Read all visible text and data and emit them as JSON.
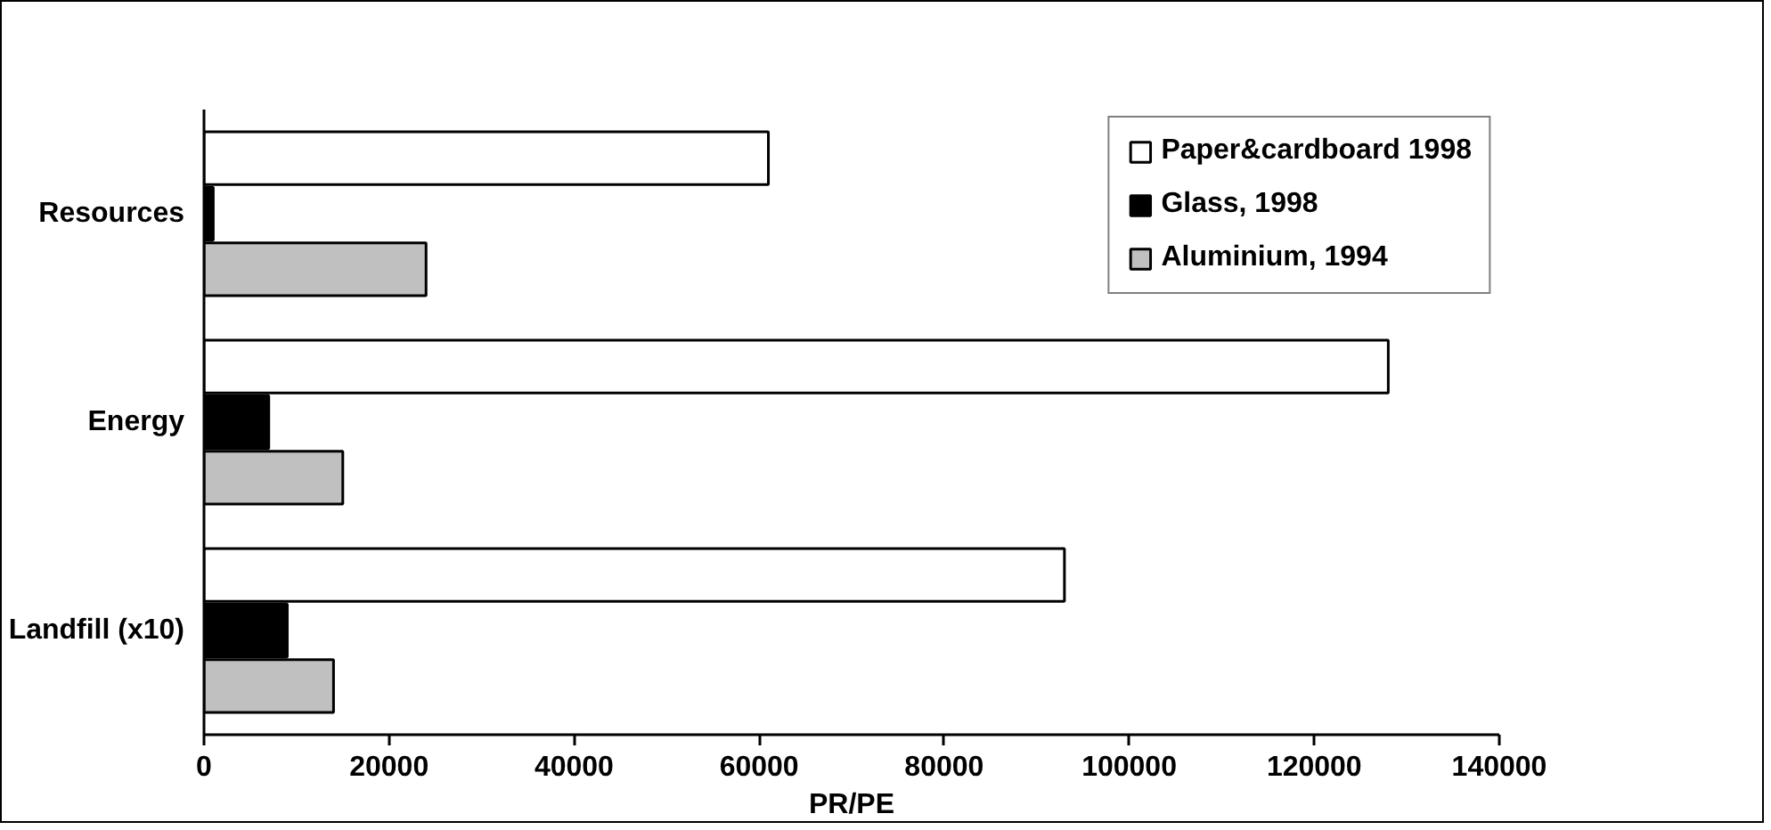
{
  "chart_data": {
    "type": "bar",
    "orientation": "horizontal",
    "xlabel": "PR/PE",
    "categories": [
      "Resources",
      "Energy",
      "Landfill (x10)"
    ],
    "series": [
      {
        "name": "Paper&cardboard 1998",
        "color": "#ffffff",
        "values": [
          61000,
          128000,
          93000
        ]
      },
      {
        "name": "Glass, 1998",
        "color": "#000000",
        "values": [
          1000,
          7000,
          9000
        ]
      },
      {
        "name": "Aluminium, 1994",
        "color": "#c0c0c0",
        "values": [
          24000,
          15000,
          14000
        ]
      }
    ],
    "xlim": [
      0,
      140000
    ],
    "xticks": [
      0,
      20000,
      40000,
      60000,
      80000,
      100000,
      120000,
      140000
    ],
    "grid": false,
    "legend": "top right"
  }
}
